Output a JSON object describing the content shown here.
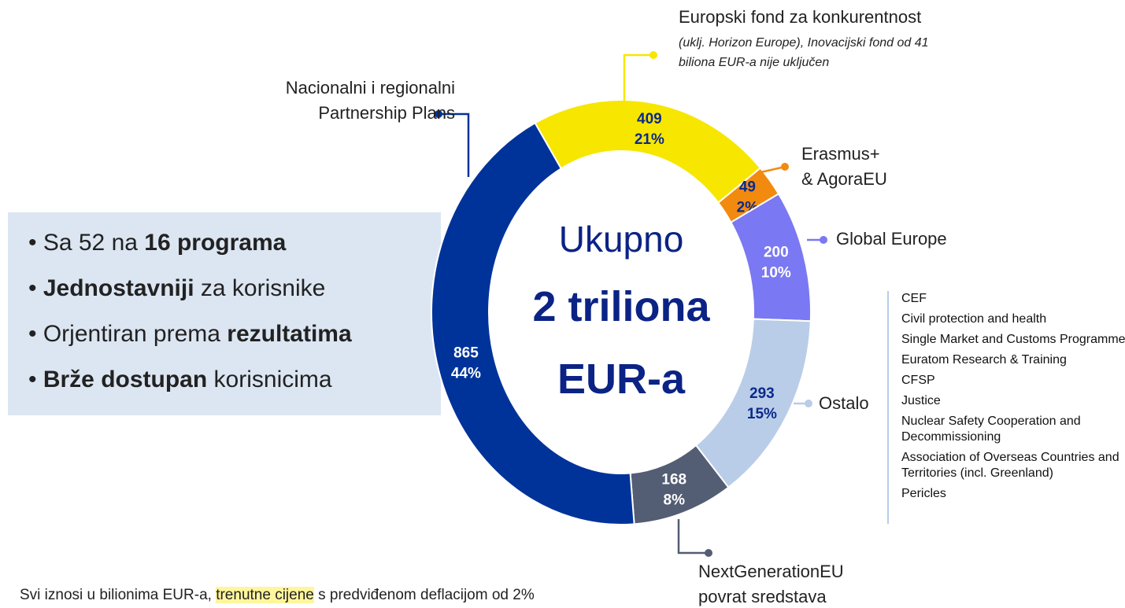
{
  "chart_data": {
    "type": "donut",
    "center_text": [
      "Ukupno",
      "2 triliona",
      "EUR-a"
    ],
    "categories": [
      "Europski fond za konkurentnost",
      "Erasmus+ & AgoraEU",
      "Global Europe",
      "Ostalo",
      "NextGenerationEU povrat sredstava",
      "Nacionalni i regionalni Partnership Plans"
    ],
    "note": "(uklj. Horizon Europe), Inovacijski fond od 41 biliona EUR-a nije uključen",
    "values": [
      409,
      49,
      200,
      293,
      168,
      865
    ],
    "shares": [
      21,
      2,
      10,
      15,
      8,
      44
    ],
    "share_labels": [
      "21%",
      "2%",
      "10%",
      "15%",
      "8%",
      "44%"
    ],
    "colors": [
      "#f7e600",
      "#f28a10",
      "#7a78f2",
      "#b9cde8",
      "#535d73",
      "#003399"
    ],
    "label_colors": [
      "#0b2a8a",
      "#0b2a8a",
      "#ffffff",
      "#0b2a8a",
      "#ffffff",
      "#ffffff"
    ],
    "other_items": [
      "CEF",
      "Civil protection and health",
      "Single Market and Customs Programme",
      "Euratom Research & Training",
      "CFSP",
      "Justice",
      "Nuclear Safety Cooperation and Decommissioning",
      "Association of Overseas Countries and Territories (incl. Greenland)",
      "Pericles"
    ]
  },
  "bullets": [
    [
      {
        "text": "Sa 52 na ",
        "bold": false
      },
      {
        "text": "16 programa",
        "bold": true
      }
    ],
    [
      {
        "text": "Jednostavniji",
        "bold": true
      },
      {
        "text": " za korisnike",
        "bold": false
      }
    ],
    [
      {
        "text": "Orjentiran prema ",
        "bold": false
      },
      {
        "text": "rezultatima",
        "bold": true
      }
    ],
    [
      {
        "text": "Brže dostupan",
        "bold": true
      },
      {
        "text": " korisnicima",
        "bold": false
      }
    ]
  ],
  "footer": [
    {
      "text": "Svi iznosi u bilionima EUR-a, ",
      "highlight": false
    },
    {
      "text": "trenutne cijene",
      "highlight": true
    },
    {
      "text": " s predviđenom deflacijom od 2%",
      "highlight": false
    }
  ]
}
